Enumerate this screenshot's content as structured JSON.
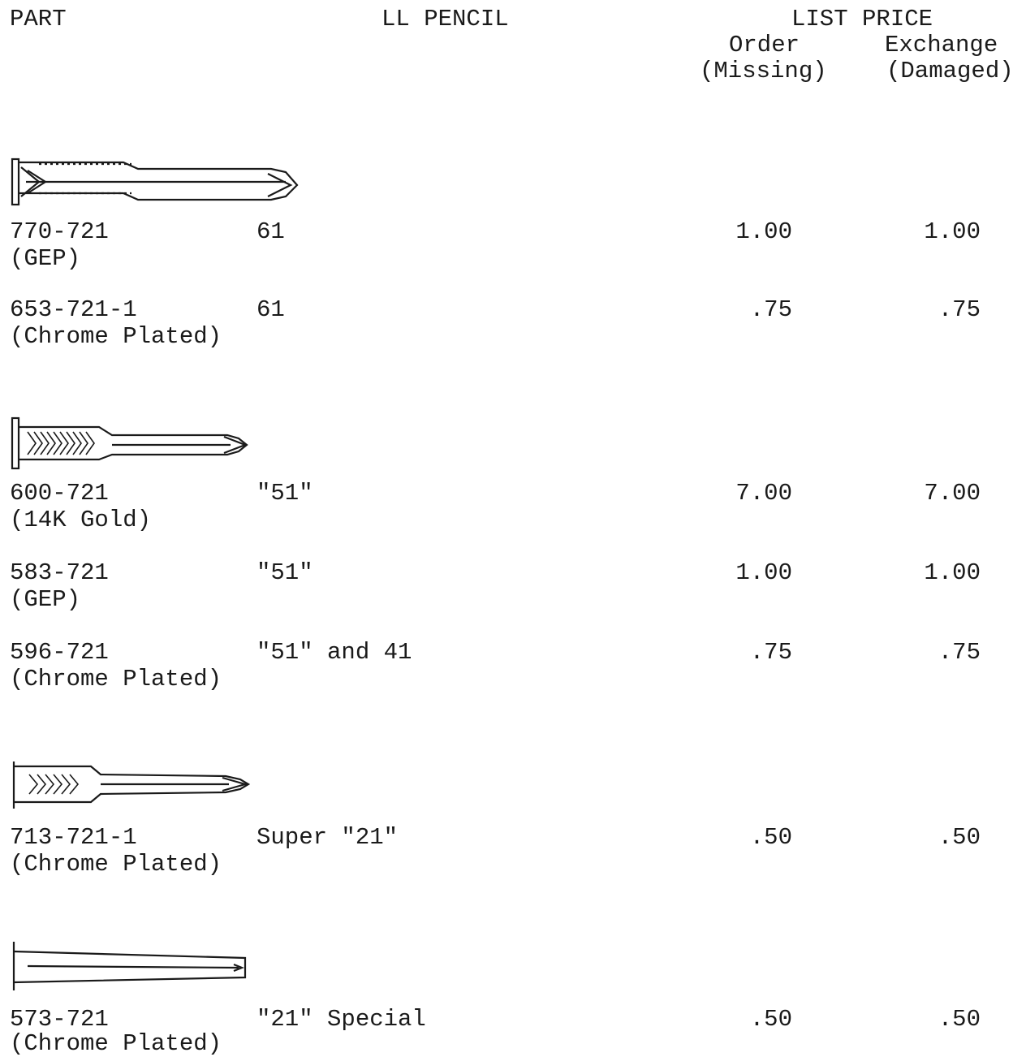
{
  "header": {
    "part_label": "PART",
    "pencil_label": "LL PENCIL",
    "list_price_label": "LIST PRICE",
    "order_label": "Order",
    "order_sub": "(Missing)",
    "exchange_label": "Exchange",
    "exchange_sub": "(Damaged)"
  },
  "clip_illustrations": [
    {
      "name": "arrow-clip-icon"
    },
    {
      "name": "arrow-clip-short-icon"
    },
    {
      "name": "slim-arrow-clip-icon"
    },
    {
      "name": "plain-clip-icon"
    }
  ],
  "rows": [
    {
      "part": "770-721",
      "finish": "(GEP)",
      "pencil": "61",
      "order": "1.00",
      "exchange": "1.00"
    },
    {
      "part": "653-721-1",
      "finish": "(Chrome Plated)",
      "pencil": "61",
      "order": ".75",
      "exchange": ".75"
    },
    {
      "part": "600-721",
      "finish": "(14K Gold)",
      "pencil": "\"51\"",
      "order": "7.00",
      "exchange": "7.00"
    },
    {
      "part": "583-721",
      "finish": "(GEP)",
      "pencil": "\"51\"",
      "order": "1.00",
      "exchange": "1.00"
    },
    {
      "part": "596-721",
      "finish": "(Chrome Plated)",
      "pencil": "\"51\" and 41",
      "order": ".75",
      "exchange": ".75"
    },
    {
      "part": "713-721-1",
      "finish": "(Chrome Plated)",
      "pencil": "Super \"21\"",
      "order": ".50",
      "exchange": ".50"
    },
    {
      "part": "573-721",
      "finish": "(Chrome Plated)",
      "pencil": "\"21\" Special",
      "order": ".50",
      "exchange": ".50"
    }
  ]
}
